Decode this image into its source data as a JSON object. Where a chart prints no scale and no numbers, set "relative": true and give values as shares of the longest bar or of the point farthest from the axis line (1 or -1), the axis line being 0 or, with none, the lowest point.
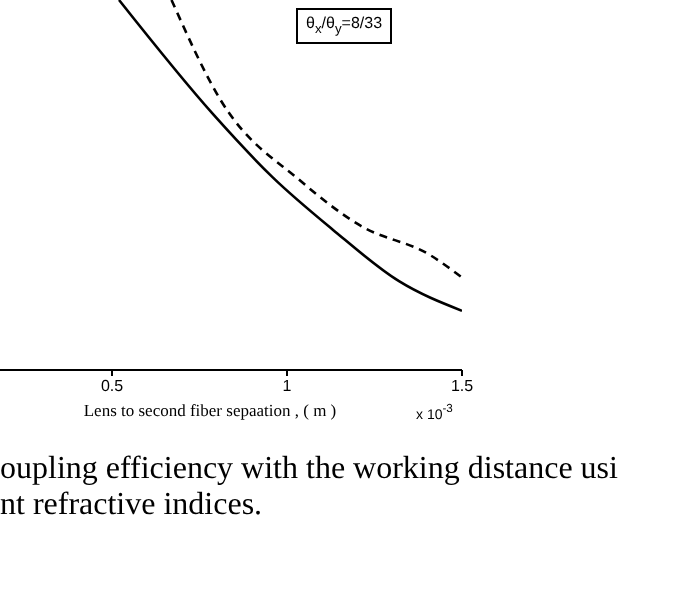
{
  "chart_data": {
    "type": "line",
    "relative": true,
    "xlabel": "Lens to second fiber sepaation , ( m )",
    "xlim": [
      0.18,
      1.5
    ],
    "xticks": [
      0.5,
      1,
      1.5
    ],
    "annotations": [
      "θ$_{x}$/θ$_{y}$=8/33",
      "x 10$^{-3}$",
      "oupling efficiency with the working distance usi",
      "nt refractive indices."
    ],
    "series": [
      {
        "color": "#000000",
        "line_style": "solid",
        "x": [
          0.52,
          0.79,
          0.96,
          1.13,
          1.32,
          1.5
        ],
        "values": [
          1,
          0.69,
          0.52,
          0.38,
          0.24,
          0.16
        ]
      },
      {
        "color": "#000000",
        "line_style": "dashed",
        "x": [
          0.67,
          0.81,
          1.04,
          1.21,
          1.41,
          1.5
        ],
        "values": [
          1,
          0.73,
          0.51,
          0.39,
          0.31,
          0.25
        ]
      }
    ]
  }
}
